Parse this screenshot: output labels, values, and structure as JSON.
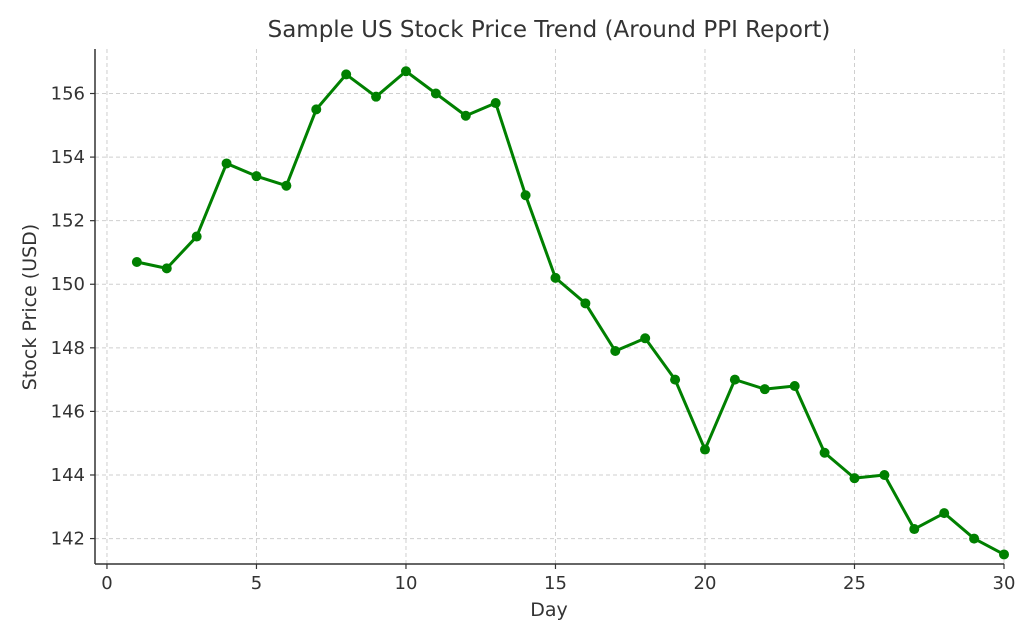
{
  "chart_data": {
    "type": "line",
    "title": "Sample US Stock Price Trend (Around PPI Report)",
    "xlabel": "Day",
    "ylabel": "Stock Price (USD)",
    "xlim": [
      -0.4,
      30.0
    ],
    "ylim": [
      141.2,
      157.4
    ],
    "xticks": [
      0,
      5,
      10,
      15,
      20,
      25,
      30
    ],
    "yticks": [
      142,
      144,
      146,
      148,
      150,
      152,
      154,
      156
    ],
    "grid": true,
    "series": [
      {
        "color": "#008000",
        "marker": "circle",
        "x": [
          1,
          2,
          3,
          4,
          5,
          6,
          7,
          8,
          9,
          10,
          11,
          12,
          13,
          14,
          15,
          16,
          17,
          18,
          19,
          20,
          21,
          22,
          23,
          24,
          25,
          26,
          27,
          28,
          29,
          30
        ],
        "y": [
          150.7,
          150.5,
          151.5,
          153.8,
          153.4,
          153.1,
          155.5,
          156.6,
          155.9,
          156.7,
          156.0,
          155.3,
          155.7,
          152.8,
          150.2,
          149.4,
          147.9,
          148.3,
          147.0,
          144.8,
          147.0,
          146.7,
          146.8,
          144.7,
          143.9,
          144.0,
          142.3,
          142.8,
          142.0,
          141.5
        ]
      }
    ]
  }
}
